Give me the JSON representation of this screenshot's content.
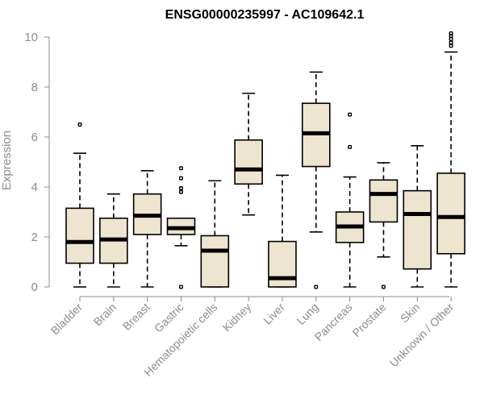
{
  "chart_data": {
    "type": "boxplot",
    "title": "ENSG00000235997 - AC109642.1",
    "xlabel": "",
    "ylabel": "Expression",
    "ylim": [
      0,
      10
    ],
    "yticks": [
      0,
      2,
      4,
      6,
      8,
      10
    ],
    "categories": [
      "Bladder",
      "Brain",
      "Breast",
      "Gastric",
      "Hematopoietic cells",
      "Kidney",
      "Liver",
      "Lung",
      "Pancreas",
      "Prostate",
      "Skin",
      "Unknown / Other"
    ],
    "boxes": [
      {
        "min": 0,
        "q1": 0.95,
        "median": 1.8,
        "q3": 3.15,
        "max": 5.35,
        "outliers": [
          6.5
        ]
      },
      {
        "min": 0,
        "q1": 0.95,
        "median": 1.9,
        "q3": 2.75,
        "max": 3.72,
        "outliers": []
      },
      {
        "min": 0,
        "q1": 2.1,
        "median": 2.85,
        "q3": 3.72,
        "max": 4.65,
        "outliers": []
      },
      {
        "min": 1.65,
        "q1": 2.1,
        "median": 2.35,
        "q3": 2.75,
        "max": 2.75,
        "outliers": [
          0.0,
          3.8,
          3.95,
          4.35,
          4.75
        ]
      },
      {
        "min": 0,
        "q1": 0,
        "median": 1.45,
        "q3": 2.05,
        "max": 4.25,
        "outliers": []
      },
      {
        "min": 2.88,
        "q1": 4.12,
        "median": 4.7,
        "q3": 5.88,
        "max": 7.75,
        "outliers": []
      },
      {
        "min": 0,
        "q1": 0,
        "median": 0.35,
        "q3": 1.82,
        "max": 4.47,
        "outliers": []
      },
      {
        "min": 2.2,
        "q1": 4.82,
        "median": 6.15,
        "q3": 7.35,
        "max": 8.6,
        "outliers": [
          0.0
        ]
      },
      {
        "min": 0,
        "q1": 1.78,
        "median": 2.42,
        "q3": 3.0,
        "max": 4.4,
        "outliers": [
          5.6,
          6.9
        ]
      },
      {
        "min": 1.2,
        "q1": 2.6,
        "median": 3.72,
        "q3": 4.28,
        "max": 4.97,
        "outliers": [
          0.0
        ]
      },
      {
        "min": 0,
        "q1": 0.72,
        "median": 2.92,
        "q3": 3.85,
        "max": 5.65,
        "outliers": []
      },
      {
        "min": 0,
        "q1": 1.33,
        "median": 2.8,
        "q3": 4.55,
        "max": 9.4,
        "outliers": [
          9.65,
          9.78,
          9.92,
          10.05,
          10.15
        ]
      }
    ]
  }
}
